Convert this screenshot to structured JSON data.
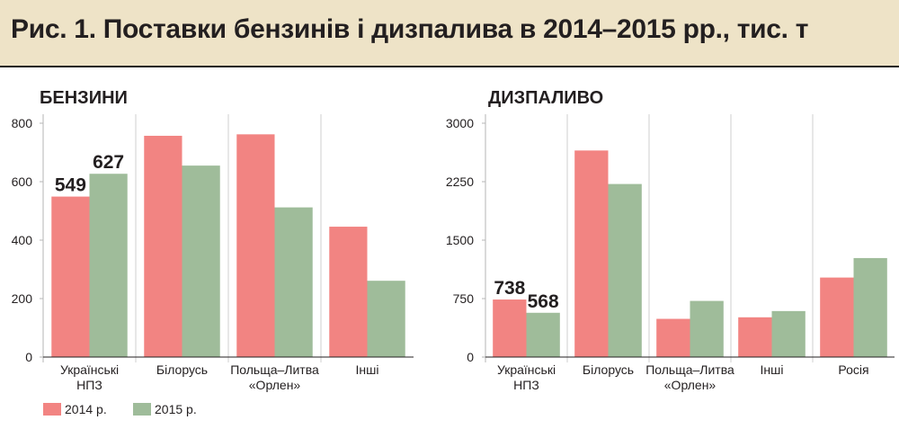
{
  "header": {
    "title": "Рис. 1. Поставки бензинів і дизпалива в 2014–2015 рр., тис. т"
  },
  "legend": [
    {
      "label": "2014 р.",
      "color": "#f28482"
    },
    {
      "label": "2015 р.",
      "color": "#9fbc9a"
    }
  ],
  "chart_data": [
    {
      "type": "bar",
      "title": "БЕНЗИНИ",
      "categories": [
        [
          "Українські",
          "НПЗ"
        ],
        [
          "Білорусь"
        ],
        [
          "Польща–Литва",
          "«Орлен»"
        ],
        [
          "Інші"
        ]
      ],
      "series": [
        {
          "name": "2014 р.",
          "values": [
            549,
            757,
            762,
            446
          ]
        },
        {
          "name": "2015 р.",
          "values": [
            627,
            655,
            512,
            261
          ]
        }
      ],
      "data_labels": [
        {
          "series": 0,
          "category": 0,
          "text": "549"
        },
        {
          "series": 1,
          "category": 0,
          "text": "627"
        }
      ],
      "ylim": [
        0,
        800
      ],
      "yticks": [
        0,
        200,
        400,
        600,
        800
      ],
      "grid": "vertical separators"
    },
    {
      "type": "bar",
      "title": "ДИЗПАЛИВО",
      "categories": [
        [
          "Українські",
          "НПЗ"
        ],
        [
          "Білорусь"
        ],
        [
          "Польща–Литва",
          "«Орлен»"
        ],
        [
          "Інші"
        ],
        [
          "Росія"
        ]
      ],
      "series": [
        {
          "name": "2014 р.",
          "values": [
            738,
            2650,
            490,
            510,
            1020
          ]
        },
        {
          "name": "2015 р.",
          "values": [
            568,
            2220,
            720,
            590,
            1270
          ]
        }
      ],
      "data_labels": [
        {
          "series": 0,
          "category": 0,
          "text": "738"
        },
        {
          "series": 1,
          "category": 0,
          "text": "568"
        }
      ],
      "ylim": [
        0,
        3000
      ],
      "yticks": [
        0,
        750,
        1500,
        2250,
        3000
      ],
      "grid": "vertical separators"
    }
  ]
}
